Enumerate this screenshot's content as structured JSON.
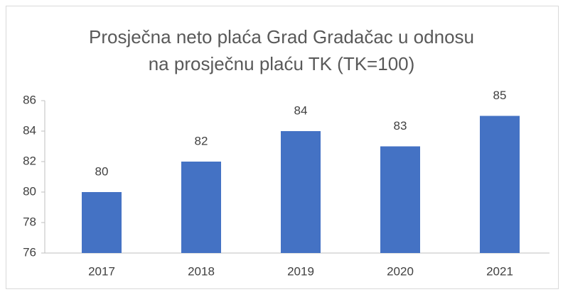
{
  "chart_data": {
    "type": "bar",
    "title": [
      "Prosječna neto plaća Grad Gradačac u odnosu",
      "na prosječnu plaću TK (TK=100)"
    ],
    "categories": [
      "2017",
      "2018",
      "2019",
      "2020",
      "2021"
    ],
    "values": [
      80,
      82,
      84,
      83,
      85
    ],
    "color": "#4472c4",
    "ylim": [
      76,
      86
    ],
    "yticks": [
      76,
      78,
      80,
      82,
      84,
      86
    ],
    "grid": false
  }
}
